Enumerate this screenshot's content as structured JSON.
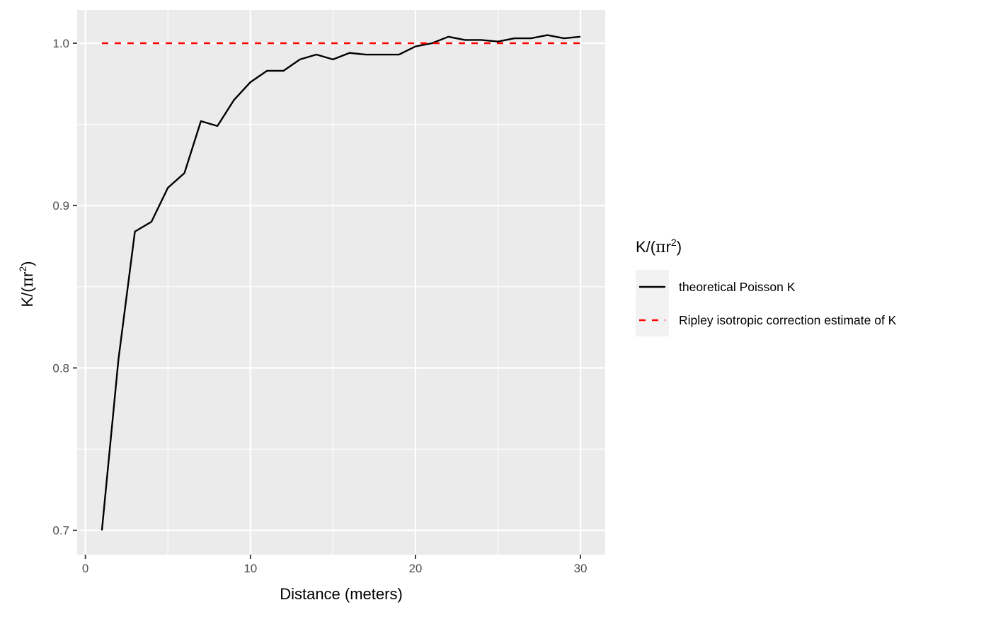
{
  "chart_data": {
    "type": "line",
    "xlabel": "Distance (meters)",
    "ylabel": {
      "prefix": "K/(",
      "pi": "π",
      "r": "r",
      "exponent": "2",
      "suffix": ")"
    },
    "xlim": [
      -0.5,
      31.5
    ],
    "ylim": [
      0.685,
      1.0205
    ],
    "x_ticks": [
      0,
      10,
      20,
      30
    ],
    "x_tick_labels": [
      "0",
      "10",
      "20",
      "30"
    ],
    "x_minor_ticks": [
      5,
      15,
      25
    ],
    "y_ticks": [
      0.7,
      0.8,
      0.9,
      1.0
    ],
    "y_tick_labels": [
      "0.7",
      "0.8",
      "0.9",
      "1.0"
    ],
    "y_minor_ticks": [
      0.75,
      0.85,
      0.95
    ],
    "grid": true,
    "panel_background": "#ebebeb",
    "gridline_color": "#ffffff",
    "legend": {
      "placement": "right",
      "title": {
        "prefix": "K/(",
        "pi": "π",
        "r": "r",
        "exponent": "2",
        "suffix": ")"
      },
      "key_background": "#f2f2f2"
    },
    "series": [
      {
        "name": "theoretical Poisson K",
        "color": "#000000",
        "dash": "solid",
        "x": [
          1,
          2,
          3,
          4,
          5,
          6,
          7,
          8,
          9,
          10,
          11,
          12,
          13,
          14,
          15,
          16,
          17,
          18,
          19,
          20,
          21,
          22,
          23,
          24,
          25,
          26,
          27,
          28,
          29,
          30
        ],
        "y": [
          0.7,
          0.805,
          0.884,
          0.89,
          0.911,
          0.92,
          0.952,
          0.949,
          0.965,
          0.976,
          0.983,
          0.983,
          0.99,
          0.993,
          0.99,
          0.994,
          0.993,
          0.993,
          0.993,
          0.998,
          1.0,
          1.004,
          1.002,
          1.002,
          1.001,
          1.003,
          1.003,
          1.005,
          1.003,
          1.004
        ]
      },
      {
        "name": "Ripley isotropic correction estimate of K",
        "color": "#ff0000",
        "dash": "dashed",
        "x": [
          1,
          30
        ],
        "y": [
          1.0,
          1.0
        ]
      }
    ]
  }
}
